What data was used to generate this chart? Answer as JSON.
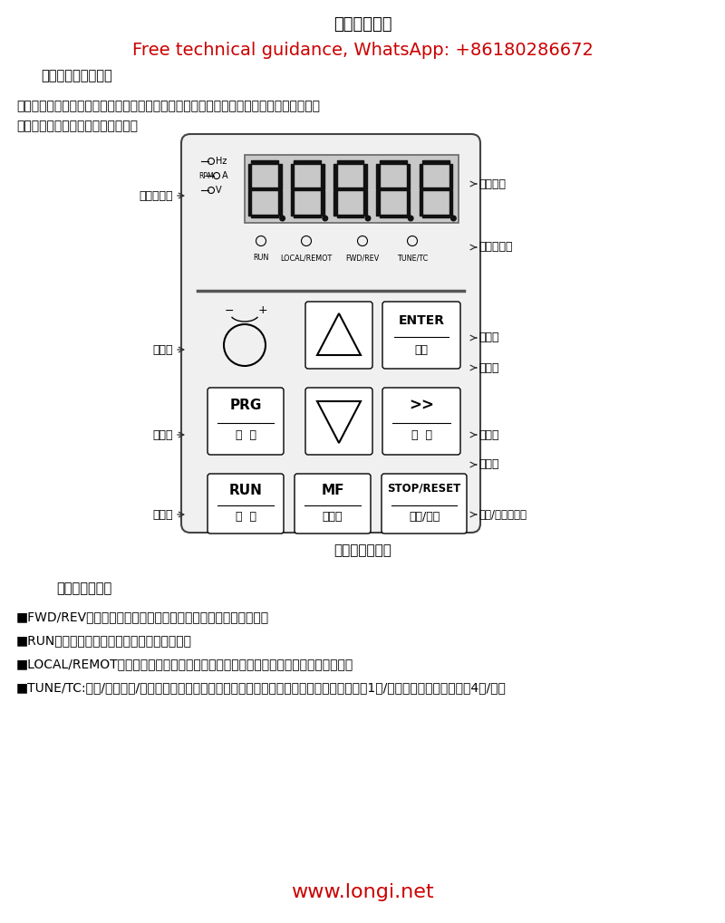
{
  "title": "键盘操作说明",
  "subtitle": "Free technical guidance, WhatsApp: +86180286672",
  "section_title": "操作与显示界面介绍",
  "intro_text1": "操作面板，可对变频器进行功能参数修改、变频器工作状态监控和变频器运行控制（起动、",
  "intro_text2": "停止）等操作，其功能如下图所示：",
  "panel_caption": "操作面板示意图",
  "func_title": "功能指示灯说明",
  "func_items": [
    "■FWD/REV：正反转指示灯，灯灭：正转运行；灯亮：反转运行；",
    "■RUN：运行指示灯，灯灭：停机；灯亮：运行",
    "■LOCAL/REMOT：命令源指示灯，灯灭：面板控制；灯亮：端子控制；闪烁：通讯控制",
    "■TUNE/TC:调谐/转矩控制/故障指示灯，灯灭：正常运行；灯亮：转矩控制；慢闪：调谐状态（1次/秒）；快闪：故障状态（4次/秒）"
  ],
  "website": "www.longi.net",
  "red_color": "#cc0000",
  "black_color": "#000000"
}
